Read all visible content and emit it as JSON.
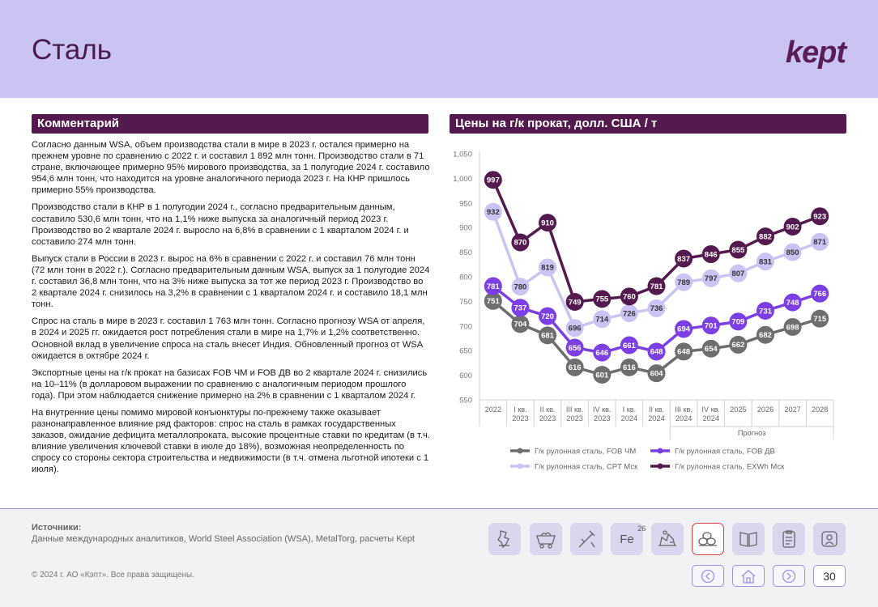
{
  "page": {
    "title": "Сталь",
    "logo": "kept"
  },
  "comment": {
    "heading": "Комментарий",
    "paragraphs": [
      "Согласно данным WSA, объем производства стали в мире в 2023 г. остался примерно на прежнем уровне по сравнению с 2022 г. и составил 1 892 млн тонн. Производство стали в 71 стране, включающее примерно 95% мирового производства, за 1 полугодие 2024 г. составило 954,6 млн тонн, что находится на уровне аналогичного периода 2023 г. На КНР пришлось примерно 55% производства.",
      "Производство стали в КНР в 1 полугодии 2024 г., согласно предварительным данным, составило 530,6 млн тонн, что на 1,1% ниже выпуска за аналогичный период 2023 г. Производство во 2 квартале 2024 г. выросло на 6,8% в сравнении с 1 кварталом 2024 г. и составило 274 млн тонн.",
      "Выпуск стали в России в 2023 г. вырос на 6% в сравнении с 2022 г. и составил 76 млн тонн (72 млн тонн в 2022 г.). Согласно предварительным данным WSA, выпуск за 1 полугодие 2024 г. составил 36,8 млн тонн, что на 3% ниже выпуска за тот же период 2023 г. Производство во 2 квартале 2024 г. снизилось на 3,2% в сравнении с 1 кварталом 2024 г. и составило 18,1 млн тонн.",
      "Спрос на сталь в мире в 2023 г. составил 1 763 млн тонн. Согласно прогнозу WSA от апреля, в 2024 и 2025 гг. ожидается рост потребления стали в мире на 1,7% и 1,2% соответственно. Основной вклад в увеличение спроса на сталь внесет Индия. Обновленный прогноз от WSA ожидается в октябре 2024 г.",
      "Экспортные цены на г/к прокат на базисах FOB ЧМ и FOB ДВ во 2 квартале 2024 г. снизились на 10–11% (в долларовом выражении по сравнению с аналогичным периодом прошлого года). При этом наблюдается снижение примерно на 2% в сравнении с 1 кварталом 2024 г.",
      "На внутренние цены помимо мировой конъюнктуры по-прежнему также оказывает разнонаправленное влияние ряд факторов: спрос на сталь в рамках государственных заказов, ожидание дефицита металлопроката, высокие процентные ставки по кредитам (в т.ч. влияние увеличения ключевой ставки в июле до 18%), возможная неопределенность по спросу со стороны сектора строительства и недвижимости (в т.ч. отмена льготной ипотеки с 1 июля)."
    ]
  },
  "chart_heading": "Цены на г/к прокат, долл. США / т",
  "chart_data": {
    "type": "line",
    "categories": [
      [
        "2022"
      ],
      [
        "I кв.",
        "2023"
      ],
      [
        "II кв.",
        "2023"
      ],
      [
        "III кв.",
        "2023"
      ],
      [
        "IV кв.",
        "2023"
      ],
      [
        "I кв.",
        "2024"
      ],
      [
        "II кв.",
        "2024"
      ],
      [
        "III кв.",
        "2024"
      ],
      [
        "IV кв.",
        "2024"
      ],
      [
        "2025"
      ],
      [
        "2026"
      ],
      [
        "2027"
      ],
      [
        "2028"
      ]
    ],
    "forecast_label": "Прогноз",
    "ylim": [
      550,
      1050
    ],
    "yticks": [
      "550",
      "600",
      "650",
      "700",
      "750",
      "800",
      "850",
      "900",
      "950",
      "1,000",
      "1,050"
    ],
    "grid": false,
    "legend_position": "bottom",
    "series": [
      {
        "name": "Г/к рулонная сталь, FOB ЧМ",
        "color": "#6e6e6e",
        "label_color": "#ffffff",
        "values": [
          751,
          704,
          681,
          616,
          601,
          616,
          604,
          648,
          654,
          662,
          682,
          698,
          715
        ]
      },
      {
        "name": "Г/к рулонная сталь, FOB ДВ",
        "color": "#7b3fe4",
        "label_color": "#ffffff",
        "values": [
          781,
          737,
          720,
          656,
          646,
          661,
          648,
          694,
          701,
          709,
          731,
          748,
          766
        ]
      },
      {
        "name": "Г/к рулонная сталь, CPT Мск",
        "color": "#c9c4f3",
        "label_color": "#333333",
        "values": [
          932,
          780,
          819,
          696,
          714,
          726,
          736,
          789,
          797,
          807,
          831,
          850,
          871
        ]
      },
      {
        "name": "Г/к рулонная сталь, EXWh Мск",
        "color": "#541a4f",
        "label_color": "#ffffff",
        "values": [
          997,
          870,
          910,
          749,
          755,
          760,
          781,
          837,
          846,
          855,
          882,
          902,
          923
        ]
      }
    ]
  },
  "footer": {
    "sources_label": "Источники:",
    "sources_text": "Данные международных аналитиков, World Steel Association (WSA), MetalTorg, расчеты Kept",
    "copyright": "© 2024 г. АО «Кэпт». Все права защищены.",
    "fe_symbol": "Fe",
    "fe_number": "26",
    "page_number": "30"
  },
  "nav_icons": [
    "ore-icon",
    "mine-cart-icon",
    "drill-icon",
    "iron-element-icon",
    "factory-icon",
    "steel-rolls-icon",
    "book-icon",
    "clipboard-icon",
    "person-icon"
  ],
  "colors": {
    "header_bg": "#c9c4f3",
    "brand": "#541a4f",
    "accent": "#7b3fe4"
  }
}
